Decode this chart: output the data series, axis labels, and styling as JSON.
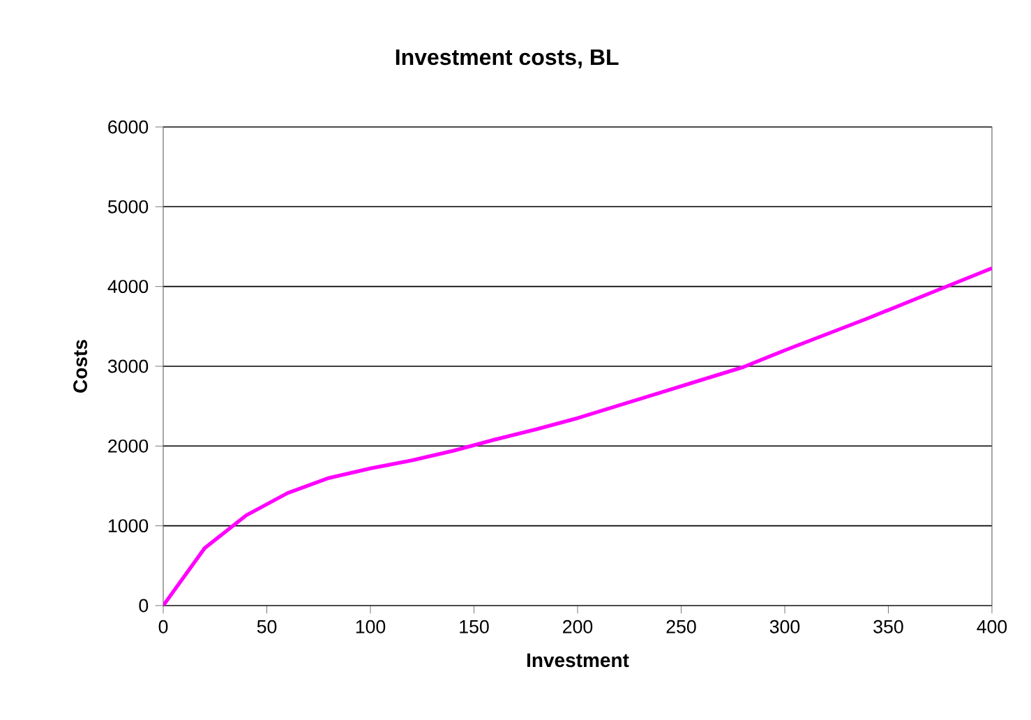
{
  "chart_data": {
    "type": "line",
    "title": "Investment costs, BL",
    "xlabel": "Investment",
    "ylabel": "Costs",
    "x": [
      0,
      20,
      40,
      60,
      80,
      100,
      120,
      140,
      160,
      180,
      200,
      220,
      240,
      260,
      280,
      300,
      320,
      340,
      360,
      380,
      400
    ],
    "series": [
      {
        "color": "#ff00ff",
        "values": [
          0,
          720,
          1130,
          1410,
          1600,
          1720,
          1820,
          1940,
          2080,
          2210,
          2350,
          2510,
          2670,
          2830,
          2990,
          3200,
          3400,
          3600,
          3810,
          4020,
          4230
        ]
      }
    ],
    "xlim": [
      0,
      400
    ],
    "ylim": [
      0,
      6000
    ],
    "xticks": [
      0,
      50,
      100,
      150,
      200,
      250,
      300,
      350,
      400
    ],
    "yticks": [
      0,
      1000,
      2000,
      3000,
      4000,
      5000,
      6000
    ],
    "grid": "y",
    "marker": "none",
    "line_style": "solid"
  }
}
